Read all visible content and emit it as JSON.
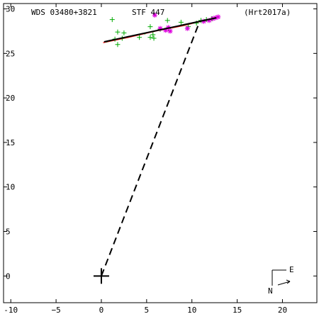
{
  "header": {
    "wds": "WDS 03480+3821",
    "discoverer": "STF 447",
    "reference": "(Hrt2017a)"
  },
  "compass": {
    "north_label": "N",
    "east_label": "E"
  },
  "colors": {
    "axes": "#000000",
    "orbit": "#ff0000",
    "observations": "#00aa00",
    "measures": "#dd00dd",
    "fit": "#000000"
  },
  "chart_data": {
    "type": "scatter",
    "title": "",
    "xlabel": "",
    "ylabel": "",
    "xlim": [
      -10.8,
      23.8
    ],
    "ylim": [
      -3.0,
      30.6
    ],
    "x_ticks": [
      -10,
      -5,
      0,
      5,
      10,
      15,
      20
    ],
    "x_tick_labels": [
      "-10",
      "−5",
      "0",
      "5",
      "10",
      "15",
      "20"
    ],
    "y_ticks": [
      0,
      5,
      10,
      15,
      20,
      25,
      30
    ],
    "y_tick_labels": [
      "0",
      "5",
      "10",
      "15",
      "20",
      "25",
      "30"
    ],
    "primary": {
      "x": 0,
      "y": 0
    },
    "dashed_line": [
      [
        0,
        0
      ],
      [
        10.9,
        28.7
      ]
    ],
    "orbit_arc": [
      [
        0.2,
        26.2
      ],
      [
        3.0,
        26.8
      ],
      [
        6.0,
        27.5
      ],
      [
        9.0,
        28.1
      ],
      [
        11.0,
        28.6
      ],
      [
        12.4,
        28.9
      ]
    ],
    "fit_line": [
      [
        0.3,
        26.3
      ],
      [
        12.7,
        29.0
      ]
    ],
    "series": [
      {
        "marker": "plus",
        "points": [
          [
            1.2,
            28.8
          ],
          [
            1.8,
            27.4
          ],
          [
            2.5,
            27.3
          ],
          [
            1.5,
            26.6
          ],
          [
            1.8,
            26.0
          ],
          [
            2.3,
            26.7
          ],
          [
            4.2,
            26.8
          ],
          [
            5.4,
            28.0
          ],
          [
            5.7,
            27.1
          ],
          [
            5.4,
            26.8
          ],
          [
            5.8,
            26.7
          ],
          [
            6.5,
            27.7
          ],
          [
            7.3,
            28.7
          ],
          [
            7.4,
            27.8
          ],
          [
            8.8,
            28.5
          ],
          [
            9.6,
            28.0
          ],
          [
            10.5,
            28.4
          ],
          [
            11.0,
            28.7
          ],
          [
            11.6,
            28.8
          ],
          [
            12.2,
            28.9
          ]
        ]
      },
      {
        "marker": "star",
        "points": [
          [
            5.9,
            29.3
          ],
          [
            6.5,
            27.8
          ],
          [
            7.1,
            27.6
          ],
          [
            7.4,
            27.9
          ],
          [
            7.6,
            27.5
          ],
          [
            9.5,
            27.8
          ],
          [
            11.3,
            28.6
          ],
          [
            11.9,
            28.7
          ],
          [
            12.3,
            28.9
          ],
          [
            12.6,
            29.0
          ],
          [
            12.9,
            29.1
          ]
        ]
      },
      {
        "marker": "dot",
        "points": [
          [
            0.6,
            26.3
          ],
          [
            1.0,
            26.4
          ],
          [
            1.4,
            26.6
          ],
          [
            3.0,
            26.9
          ],
          [
            3.5,
            27.0
          ],
          [
            4.8,
            27.2
          ],
          [
            7.0,
            27.8
          ],
          [
            8.2,
            28.0
          ],
          [
            9.2,
            28.2
          ],
          [
            10.2,
            28.4
          ],
          [
            11.8,
            28.8
          ],
          [
            12.5,
            28.95
          ]
        ]
      }
    ]
  }
}
